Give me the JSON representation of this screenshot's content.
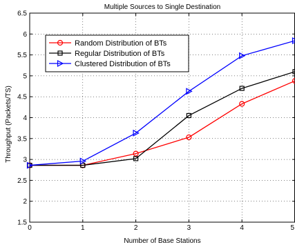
{
  "chart_data": {
    "type": "line",
    "title": "Multiple Sources to Single Destination",
    "xlabel": "Number of Base Stations",
    "ylabel": "Throughput (Packets/TS)",
    "x": [
      0,
      1,
      2,
      3,
      4,
      5
    ],
    "xlim": [
      0,
      5
    ],
    "ylim": [
      1.5,
      6.5
    ],
    "xticks": [
      "0",
      "1",
      "2",
      "3",
      "4",
      "5"
    ],
    "yticks": [
      "1.5",
      "2",
      "2.5",
      "3",
      "3.5",
      "4",
      "4.5",
      "5",
      "5.5",
      "6",
      "6.5"
    ],
    "grid": true,
    "legend_position": "top-left",
    "series": [
      {
        "name": "Random Distribution of BTs",
        "values": [
          2.86,
          2.86,
          3.14,
          3.53,
          4.33,
          4.88
        ],
        "color": "#ff0000",
        "marker": "circle"
      },
      {
        "name": "Regular Distribution of BTs",
        "values": [
          2.86,
          2.86,
          3.02,
          4.05,
          4.7,
          5.1
        ],
        "color": "#000000",
        "marker": "square"
      },
      {
        "name": "Clustered Distribution of BTs",
        "values": [
          2.86,
          2.96,
          3.63,
          4.63,
          5.48,
          5.84
        ],
        "color": "#0000ff",
        "marker": "triangle-right"
      }
    ]
  }
}
